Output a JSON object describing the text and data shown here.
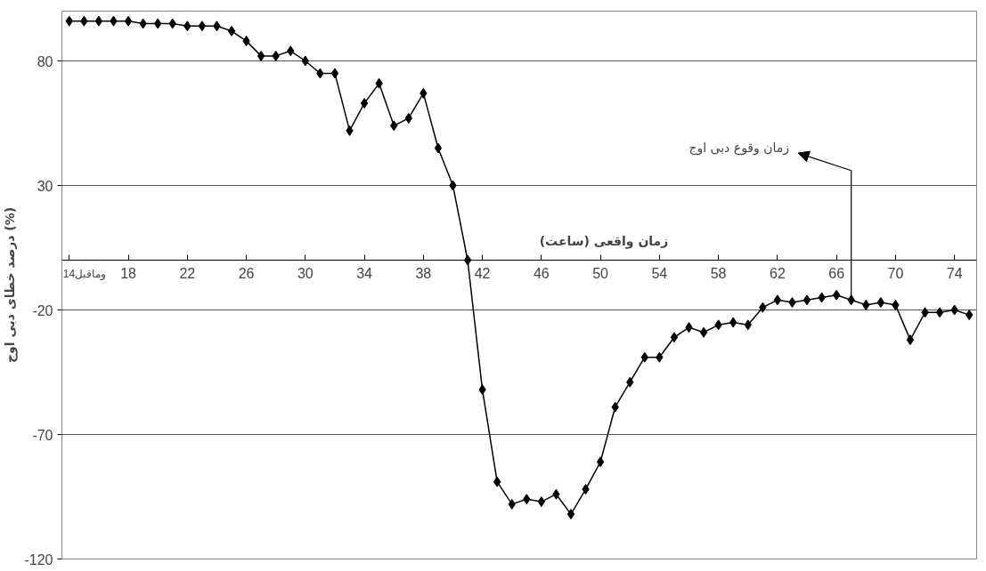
{
  "chart_data": {
    "type": "line",
    "xlabel": "زمان واقعی (ساعت)",
    "ylabel": "درصد خطای دبی اوج (%)",
    "x": [
      14,
      15,
      16,
      17,
      18,
      19,
      20,
      21,
      22,
      23,
      24,
      25,
      26,
      27,
      28,
      29,
      30,
      31,
      32,
      33,
      34,
      35,
      36,
      37,
      38,
      39,
      40,
      41,
      42,
      43,
      44,
      45,
      46,
      47,
      48,
      49,
      50,
      51,
      52,
      53,
      54,
      55,
      56,
      57,
      58,
      59,
      60,
      61,
      62,
      63,
      64,
      65,
      66,
      67,
      68,
      69,
      70,
      71,
      72,
      73,
      74,
      75
    ],
    "series": [
      {
        "color": "#000000",
        "values": [
          96,
          96,
          96,
          96,
          96,
          95,
          95,
          95,
          94,
          94,
          94,
          92,
          88,
          82,
          82,
          84,
          80,
          75,
          75,
          52,
          63,
          71,
          54,
          57,
          67,
          45,
          30,
          0,
          -52,
          -89,
          -98,
          -96,
          -97,
          -94,
          -102,
          -92,
          -81,
          -59,
          -49,
          -39,
          -39,
          -31,
          -27,
          -29,
          -26,
          -25,
          -26,
          -19,
          -16,
          -17,
          -16,
          -15,
          -14,
          -16,
          -18,
          -17,
          -18,
          -32,
          -21,
          -21,
          -20,
          -22
        ]
      }
    ],
    "xlim": [
      13.5,
      75.5
    ],
    "xticks": [
      {
        "value": 14,
        "label": "14وماقبل"
      },
      18,
      22,
      26,
      30,
      34,
      38,
      42,
      46,
      50,
      54,
      58,
      62,
      66,
      70,
      74
    ],
    "ylim": [
      -120,
      100
    ],
    "yticks": [
      -120,
      -70,
      -20,
      30,
      80
    ],
    "grid": "y",
    "marker": "diamond",
    "line_style": "solid",
    "ref_lines": [
      {
        "axis": "x",
        "value": 67,
        "label": "زمان وقوع دبی اوج",
        "color": "#000000"
      }
    ]
  }
}
